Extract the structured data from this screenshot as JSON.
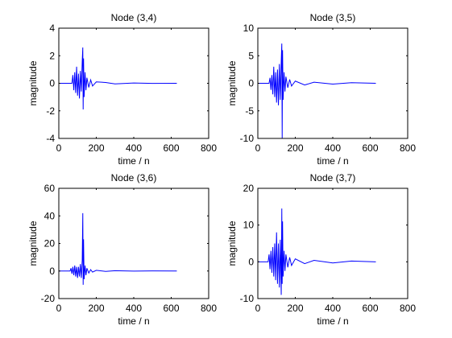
{
  "chart_data": [
    {
      "type": "line",
      "title": "Node (3,4)",
      "xlabel": "time / n",
      "ylabel": "magnitude",
      "xlim": [
        0,
        800
      ],
      "ylim": [
        -4,
        4
      ],
      "xticks": [
        0,
        200,
        400,
        600,
        800
      ],
      "yticks": [
        -4,
        -2,
        0,
        2,
        4
      ],
      "grid": false,
      "series": [
        {
          "color": "#0000ff",
          "x": [
            0,
            70,
            75,
            80,
            85,
            90,
            95,
            100,
            105,
            110,
            115,
            120,
            125,
            128,
            130,
            132,
            135,
            140,
            145,
            150,
            160,
            170,
            180,
            200,
            250,
            300,
            400,
            500,
            630
          ],
          "y": [
            0,
            0,
            0.6,
            -0.5,
            0.8,
            -0.7,
            1.2,
            -0.9,
            0.7,
            -1.1,
            0.9,
            -0.6,
            1.6,
            2.6,
            -1.9,
            1.8,
            -1.0,
            0.8,
            -0.5,
            0.4,
            -0.3,
            0.25,
            -0.2,
            0.1,
            0.06,
            -0.04,
            0.02,
            -0.01,
            0
          ]
        }
      ]
    },
    {
      "type": "line",
      "title": "Node (3,5)",
      "xlabel": "time / n",
      "ylabel": "magnitude",
      "xlim": [
        0,
        800
      ],
      "ylim": [
        -10,
        10
      ],
      "xticks": [
        0,
        200,
        400,
        600,
        800
      ],
      "yticks": [
        -10,
        -5,
        0,
        5,
        10
      ],
      "grid": false,
      "series": [
        {
          "color": "#0000ff",
          "x": [
            0,
            60,
            65,
            70,
            75,
            80,
            85,
            90,
            95,
            100,
            105,
            110,
            115,
            120,
            125,
            128,
            130,
            132,
            135,
            140,
            145,
            150,
            160,
            170,
            180,
            200,
            250,
            300,
            400,
            500,
            630
          ],
          "y": [
            0,
            0,
            1.0,
            -1.2,
            1.5,
            -2.0,
            3.0,
            -2.5,
            2.0,
            -3.5,
            2.5,
            -4.0,
            3.5,
            -3.0,
            4.0,
            7.2,
            -10.0,
            6.0,
            -3.0,
            2.0,
            -1.5,
            1.2,
            -0.8,
            0.7,
            -0.5,
            0.4,
            -0.3,
            0.2,
            -0.15,
            0.1,
            0
          ]
        }
      ]
    },
    {
      "type": "line",
      "title": "Node (3,6)",
      "xlabel": "time / n",
      "ylabel": "magnitude",
      "xlim": [
        0,
        800
      ],
      "ylim": [
        -20,
        60
      ],
      "xticks": [
        0,
        200,
        400,
        600,
        800
      ],
      "yticks": [
        -20,
        0,
        20,
        40,
        60
      ],
      "grid": false,
      "series": [
        {
          "color": "#0000ff",
          "x": [
            0,
            60,
            65,
            70,
            75,
            80,
            85,
            90,
            95,
            100,
            105,
            110,
            115,
            120,
            125,
            128,
            130,
            132,
            135,
            140,
            145,
            150,
            160,
            170,
            180,
            200,
            250,
            300,
            400,
            500,
            630
          ],
          "y": [
            0,
            0,
            2,
            -2,
            3,
            -3,
            4,
            -4,
            3,
            -5,
            3,
            -4,
            5,
            -5,
            8,
            42,
            -10,
            23,
            -6,
            4,
            -3,
            2,
            -1.5,
            1,
            -0.8,
            0.5,
            -0.3,
            0.2,
            -0.1,
            0.05,
            0
          ]
        }
      ]
    },
    {
      "type": "line",
      "title": "Node (3,7)",
      "xlabel": "time / n",
      "ylabel": "magnitude",
      "xlim": [
        0,
        800
      ],
      "ylim": [
        -10,
        20
      ],
      "xticks": [
        0,
        200,
        400,
        600,
        800
      ],
      "yticks": [
        -10,
        0,
        10,
        20
      ],
      "grid": false,
      "series": [
        {
          "color": "#0000ff",
          "x": [
            0,
            55,
            60,
            65,
            70,
            75,
            80,
            85,
            90,
            95,
            100,
            105,
            110,
            115,
            120,
            125,
            128,
            130,
            132,
            135,
            140,
            145,
            150,
            160,
            170,
            180,
            200,
            250,
            300,
            400,
            500,
            630
          ],
          "y": [
            0,
            0,
            2,
            -2,
            3,
            -3,
            4,
            -4,
            5,
            -5,
            8,
            -6,
            5,
            -7,
            6,
            -9,
            14.5,
            -6,
            11,
            -4,
            3,
            -2.5,
            2,
            -1.5,
            1.2,
            -1,
            0.8,
            -0.5,
            0.4,
            -0.3,
            0.2,
            0
          ]
        }
      ]
    }
  ]
}
